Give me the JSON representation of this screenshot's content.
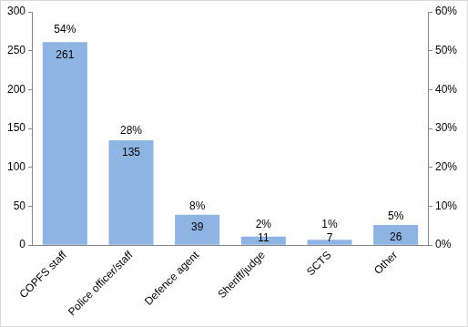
{
  "chart_data": {
    "type": "bar",
    "categories": [
      "COPFS staff",
      "Police officer/staff",
      "Defence agent",
      "Sheriff/judge",
      "SCTS",
      "Other"
    ],
    "values": [
      261,
      135,
      39,
      11,
      7,
      26
    ],
    "percentages": [
      54,
      28,
      8,
      2,
      1,
      5
    ],
    "percentage_labels": [
      "54%",
      "28%",
      "8%",
      "2%",
      "1%",
      "5%"
    ],
    "color": "#8db4e2",
    "ylim": [
      0,
      300
    ],
    "yticks": [
      0,
      50,
      100,
      150,
      200,
      250,
      300
    ],
    "y2lim": [
      0,
      60
    ],
    "y2ticks": [
      {
        "value": 0,
        "label": "0%"
      },
      {
        "value": 10,
        "label": "10%"
      },
      {
        "value": 20,
        "label": "20%"
      },
      {
        "value": 30,
        "label": "30%"
      },
      {
        "value": 40,
        "label": "40%"
      },
      {
        "value": 50,
        "label": "50%"
      },
      {
        "value": 60,
        "label": "60%"
      }
    ],
    "grid": false,
    "data_labels": true
  }
}
